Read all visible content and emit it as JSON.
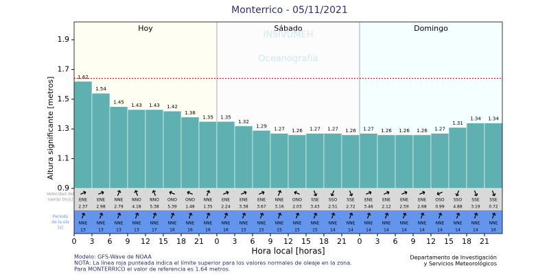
{
  "chart_data": {
    "type": "bar",
    "title": "Monterrico  -  05/11/2021",
    "y_label": "Altura significante [metros]",
    "x_label": "Hora local [horas]",
    "days": [
      "Hoy",
      "Sábado",
      "Domingo"
    ],
    "watermark": [
      "INSIVUMEH",
      "Oceanografía"
    ],
    "color": "#5fb0b0",
    "reference_line": 1.64,
    "reference_color": "#c0392b",
    "x": [
      0,
      3,
      6,
      9,
      12,
      15,
      18,
      21,
      24,
      27,
      30,
      33,
      36,
      39,
      42,
      45,
      48,
      51,
      54,
      57,
      60,
      63,
      66,
      69
    ],
    "values": [
      1.62,
      1.54,
      1.45,
      1.43,
      1.43,
      1.42,
      1.38,
      1.35,
      1.35,
      1.32,
      1.29,
      1.27,
      1.26,
      1.27,
      1.27,
      1.26,
      1.27,
      1.26,
      1.26,
      1.26,
      1.27,
      1.31,
      1.34,
      1.34
    ],
    "xlim": [
      0,
      72
    ],
    "ylim": [
      0.9,
      2.02
    ],
    "yticks": [
      0.9,
      1.1,
      1.3,
      1.5,
      1.7,
      1.9
    ],
    "xticks": [
      0,
      3,
      6,
      9,
      12,
      15,
      18,
      21,
      {
        "value": 24,
        "label": "0"
      },
      {
        "value": 27,
        "label": "3"
      },
      {
        "value": 30,
        "label": "6"
      },
      {
        "value": 33,
        "label": "9"
      },
      {
        "value": 36,
        "label": "12"
      },
      {
        "value": 39,
        "label": "15"
      },
      {
        "value": 42,
        "label": "18"
      },
      {
        "value": 45,
        "label": "21"
      },
      {
        "value": 48,
        "label": "0"
      },
      {
        "value": 51,
        "label": "3"
      },
      {
        "value": 54,
        "label": "6"
      },
      {
        "value": 57,
        "label": "9"
      },
      {
        "value": 60,
        "label": "12"
      },
      {
        "value": 63,
        "label": "15"
      },
      {
        "value": 66,
        "label": "18"
      },
      {
        "value": 69,
        "label": "21"
      }
    ],
    "wind_label": "Velocidad del viento [m/s]",
    "wind_dir": [
      "ENE",
      "ENE",
      "NNE",
      "NNO",
      "NNO",
      "ONO",
      "ONO",
      "NNE",
      "ENE",
      "ENE",
      "ENE",
      "NNE",
      "ONO",
      "SSE",
      "SSO",
      "SSE",
      "ENE",
      "ENE",
      "ENE",
      "ENE",
      "OSO",
      "SSO",
      "SSE",
      "SSE"
    ],
    "wind_speed": [
      2.37,
      2.98,
      2.79,
      4.18,
      5.38,
      5.39,
      1.48,
      1.35,
      2.24,
      3.38,
      3.67,
      3.16,
      2.03,
      3.43,
      2.51,
      2.72,
      3.46,
      2.12,
      2.59,
      2.68,
      0.99,
      4.88,
      3.19,
      0.72
    ],
    "wave_label": "Periodo de la ola [s]",
    "wave_dir": [
      "NNE",
      "NNE",
      "NNE",
      "NNE",
      "NNE",
      "NNE",
      "NNE",
      "NNE",
      "NNE",
      "NNE",
      "NNE",
      "NNE",
      "NNE",
      "NNE",
      "NNE",
      "NNE",
      "NNE",
      "NNE",
      "NNE",
      "NNE",
      "NNE",
      "NNE",
      "NNE",
      "NNE"
    ],
    "wave_period": [
      13,
      13,
      13,
      13,
      17,
      16,
      16,
      16,
      16,
      15,
      15,
      15,
      15,
      15,
      14,
      14,
      14,
      14,
      14,
      14,
      14,
      14,
      14,
      16
    ],
    "footer_left": [
      "Modelo: GFS-Wave de NOAA",
      "NOTA: La línea roja punteada indica el límite superior para los valores normales de oleaje en la zona.",
      "Para MONTERRICO el valor de referencia es 1.64 metros."
    ],
    "footer_right": [
      "Departamento de Investigación",
      "y Servicios Meteorológicos"
    ]
  }
}
